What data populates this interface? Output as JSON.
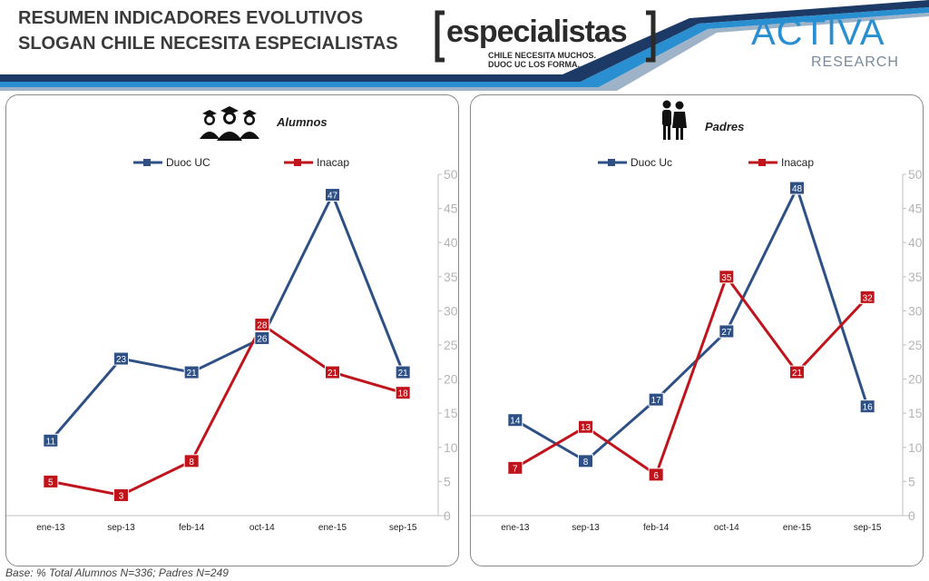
{
  "header": {
    "title_line1": "RESUMEN INDICADORES EVOLUTIVOS",
    "title_line2": "SLOGAN CHILE NECESITA ESPECIALISTAS",
    "brand_word": "especialistas",
    "brand_slogan_1": "CHILE NECESITA MUCHOS.",
    "brand_slogan_2": "DUOC UC LOS FORMA.",
    "activ_word": "ACTIVA",
    "activ_sub": "RESEARCH"
  },
  "footer": {
    "base_note": "Base: % Total Alumnos  N=336;  Padres N=249"
  },
  "colors": {
    "duoc": "#2e5084",
    "inacap": "#c0141c",
    "band_dark": "#1d3a66",
    "band_light": "#2a8fd0"
  },
  "chart_data": [
    {
      "type": "line",
      "title": "Alumnos",
      "icon": "students-icon",
      "categories": [
        "ene-13",
        "sep-13",
        "feb-14",
        "oct-14",
        "ene-15",
        "sep-15"
      ],
      "series": [
        {
          "name": "Duoc UC",
          "values": [
            11,
            23,
            21,
            26,
            47,
            21
          ]
        },
        {
          "name": "Inacap",
          "values": [
            5,
            3,
            8,
            28,
            21,
            18
          ]
        }
      ],
      "y_ticks": [
        "0",
        "5",
        "10",
        "15",
        "20",
        "25",
        "30",
        "35",
        "40",
        "45",
        "50"
      ],
      "ylim": [
        0,
        50
      ],
      "y_axis_side": "right",
      "legend": "top",
      "grid": false
    },
    {
      "type": "line",
      "title": "Padres",
      "icon": "parents-icon",
      "categories": [
        "ene-13",
        "sep-13",
        "feb-14",
        "oct-14",
        "ene-15",
        "sep-15"
      ],
      "series": [
        {
          "name": "Duoc Uc",
          "values": [
            14,
            8,
            17,
            27,
            48,
            16
          ]
        },
        {
          "name": "Inacap",
          "values": [
            7,
            13,
            6,
            35,
            21,
            32
          ]
        }
      ],
      "y_ticks": [
        "0",
        "5",
        "10",
        "15",
        "20",
        "25",
        "30",
        "35",
        "40",
        "45",
        "50"
      ],
      "ylim": [
        0,
        50
      ],
      "y_axis_side": "right",
      "legend": "top",
      "grid": false
    }
  ]
}
